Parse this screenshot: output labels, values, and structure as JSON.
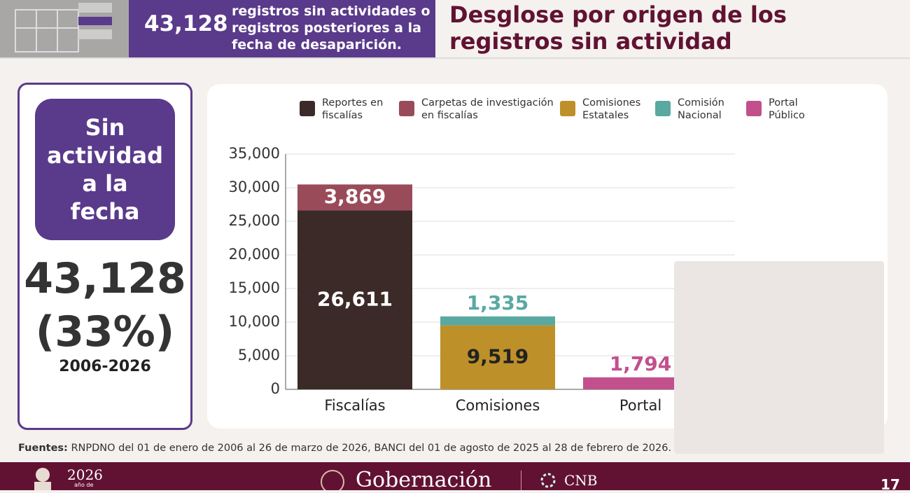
{
  "header": {
    "count": "43,128",
    "text": "registros sin actividades o registros posteriores a la fecha de desaparición.",
    "title": "Desglose por origen de los registros sin actividad"
  },
  "panel": {
    "badge": "Sin actividad a la fecha",
    "total": "43,128",
    "percent": "(33%)",
    "period": "2006-2026"
  },
  "chart_data": {
    "type": "stacked_bar",
    "categories": [
      "Fiscalías",
      "Comisiones",
      "Portal"
    ],
    "series": [
      {
        "name": "Reportes en fiscalías",
        "color": "#3b2a27",
        "values": [
          26611,
          null,
          null
        ],
        "value_labels": [
          "26,611",
          null,
          null
        ]
      },
      {
        "name": "Carpetas de investigación en fiscalías",
        "color": "#9a4b59",
        "values": [
          3869,
          null,
          null
        ],
        "value_labels": [
          "3,869",
          null,
          null
        ]
      },
      {
        "name": "Comisiones Estatales",
        "color": "#be9029",
        "values": [
          null,
          9519,
          null
        ],
        "value_labels": [
          null,
          "9,519",
          null
        ]
      },
      {
        "name": "Comisión Nacional",
        "color": "#5aa9a1",
        "values": [
          null,
          1335,
          null
        ],
        "value_labels": [
          null,
          "1,335",
          null
        ]
      },
      {
        "name": "Portal Público",
        "color": "#c2508d",
        "values": [
          null,
          null,
          1794
        ],
        "value_labels": [
          null,
          null,
          "1,794"
        ]
      }
    ],
    "ylim": [
      0,
      35000
    ],
    "yticks": [
      0,
      {
        "value": 5000,
        "label": "5,000"
      },
      {
        "value": 10000,
        "label": "10,000"
      },
      {
        "value": 15000,
        "label": "15,000"
      },
      {
        "value": 20000,
        "label": "20,000"
      },
      {
        "value": 25000,
        "label": "25,000"
      },
      {
        "value": 30000,
        "label": "30,000"
      },
      {
        "value": 35000,
        "label": "35,000"
      }
    ],
    "grid": true,
    "legend": "top"
  },
  "footer": {
    "source_label": "Fuentes:",
    "source_text": "RNPDNO del 01 de enero de 2006 al 26 de marzo de 2026, BANCI del 01 de agosto de 2025 al 28 de febrero de 2026.",
    "year": "2026",
    "year_sub": "año de",
    "brand": "Gobernación",
    "agency": "CNB",
    "page": "17"
  }
}
